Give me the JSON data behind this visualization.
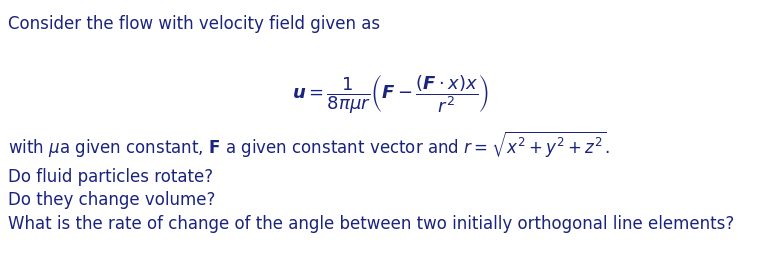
{
  "fig_width": 7.81,
  "fig_height": 2.73,
  "dpi": 100,
  "background_color": "#ffffff",
  "text_color_dark": "#1a237e",
  "text_color_black": "#1a1a1a",
  "line1": "Consider the flow with velocity field given as",
  "line1_fontsize": 12,
  "formula_fontsize": 13,
  "line3_fontsize": 12,
  "q_fontsize": 12,
  "q1": "Do fluid particles rotate?",
  "q2": "Do they change volume?",
  "q3": "What is the rate of change of the angle between two initially orthogonal line elements?"
}
